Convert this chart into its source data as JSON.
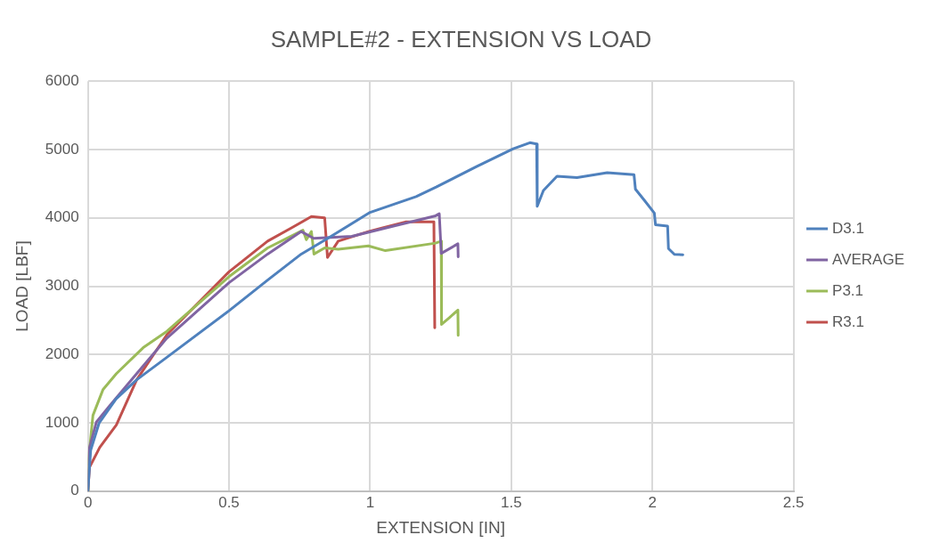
{
  "chart_data": {
    "type": "line",
    "title": "SAMPLE#2 - EXTENSION VS LOAD",
    "xlabel": "EXTENSION [IN]",
    "ylabel": "LOAD [LBF]",
    "xlim": [
      0,
      2.5
    ],
    "xticks": [
      0,
      0.5,
      1,
      1.5,
      2,
      2.5
    ],
    "ylim": [
      0,
      6000
    ],
    "yticks": [
      0,
      1000,
      2000,
      3000,
      4000,
      5000,
      6000
    ],
    "grid": true,
    "legend": "right",
    "marker": "none",
    "line_style": "solid",
    "series": [
      {
        "name": "D3.1",
        "color": "#4f81bd",
        "x": [
          0,
          0.01,
          0.04,
          0.1,
          0.173,
          0.28,
          0.5,
          0.637,
          0.756,
          0.85,
          1.0,
          1.163,
          1.234,
          1.377,
          1.507,
          1.566,
          1.59,
          1.592,
          1.614,
          1.662,
          1.733,
          1.84,
          1.935,
          1.94,
          1.971,
          2.007,
          2.011,
          2.054,
          2.057,
          2.078,
          2.108
        ],
        "values": [
          0,
          600,
          1000,
          1350,
          1630,
          1960,
          2640,
          3090,
          3470,
          3700,
          4080,
          4310,
          4450,
          4750,
          5010,
          5100,
          5080,
          4170,
          4400,
          4610,
          4590,
          4660,
          4630,
          4420,
          4260,
          4070,
          3900,
          3880,
          3550,
          3465,
          3460
        ]
      },
      {
        "name": "AVERAGE",
        "color": "#8064a2",
        "x": [
          0,
          0.006,
          0.03,
          0.077,
          0.173,
          0.28,
          0.5,
          0.637,
          0.756,
          0.8,
          0.935,
          1.054,
          1.232,
          1.245,
          1.252,
          1.311,
          1.312
        ],
        "values": [
          0,
          640,
          1010,
          1250,
          1720,
          2240,
          3050,
          3470,
          3800,
          3700,
          3730,
          3850,
          4030,
          4060,
          3480,
          3620,
          3430
        ]
      },
      {
        "name": "P3.1",
        "color": "#9bbb59",
        "x": [
          0,
          0.001,
          0.018,
          0.054,
          0.101,
          0.196,
          0.28,
          0.5,
          0.637,
          0.762,
          0.774,
          0.792,
          0.801,
          0.839,
          0.887,
          0.994,
          1.054,
          1.232,
          1.252,
          1.253,
          1.281,
          1.311,
          1.312
        ],
        "values": [
          0,
          400,
          1110,
          1490,
          1720,
          2100,
          2340,
          3140,
          3560,
          3820,
          3680,
          3800,
          3470,
          3560,
          3540,
          3590,
          3520,
          3630,
          3660,
          2440,
          2540,
          2650,
          2280
        ]
      },
      {
        "name": "R3.1",
        "color": "#c0504d",
        "x": [
          0,
          0.006,
          0.042,
          0.101,
          0.173,
          0.28,
          0.5,
          0.637,
          0.72,
          0.792,
          0.839,
          0.849,
          0.887,
          0.994,
          1.125,
          1.226,
          1.229
        ],
        "values": [
          0,
          350,
          640,
          970,
          1630,
          2290,
          3210,
          3660,
          3850,
          4020,
          4000,
          3420,
          3660,
          3800,
          3940,
          3940,
          2390
        ]
      }
    ]
  }
}
